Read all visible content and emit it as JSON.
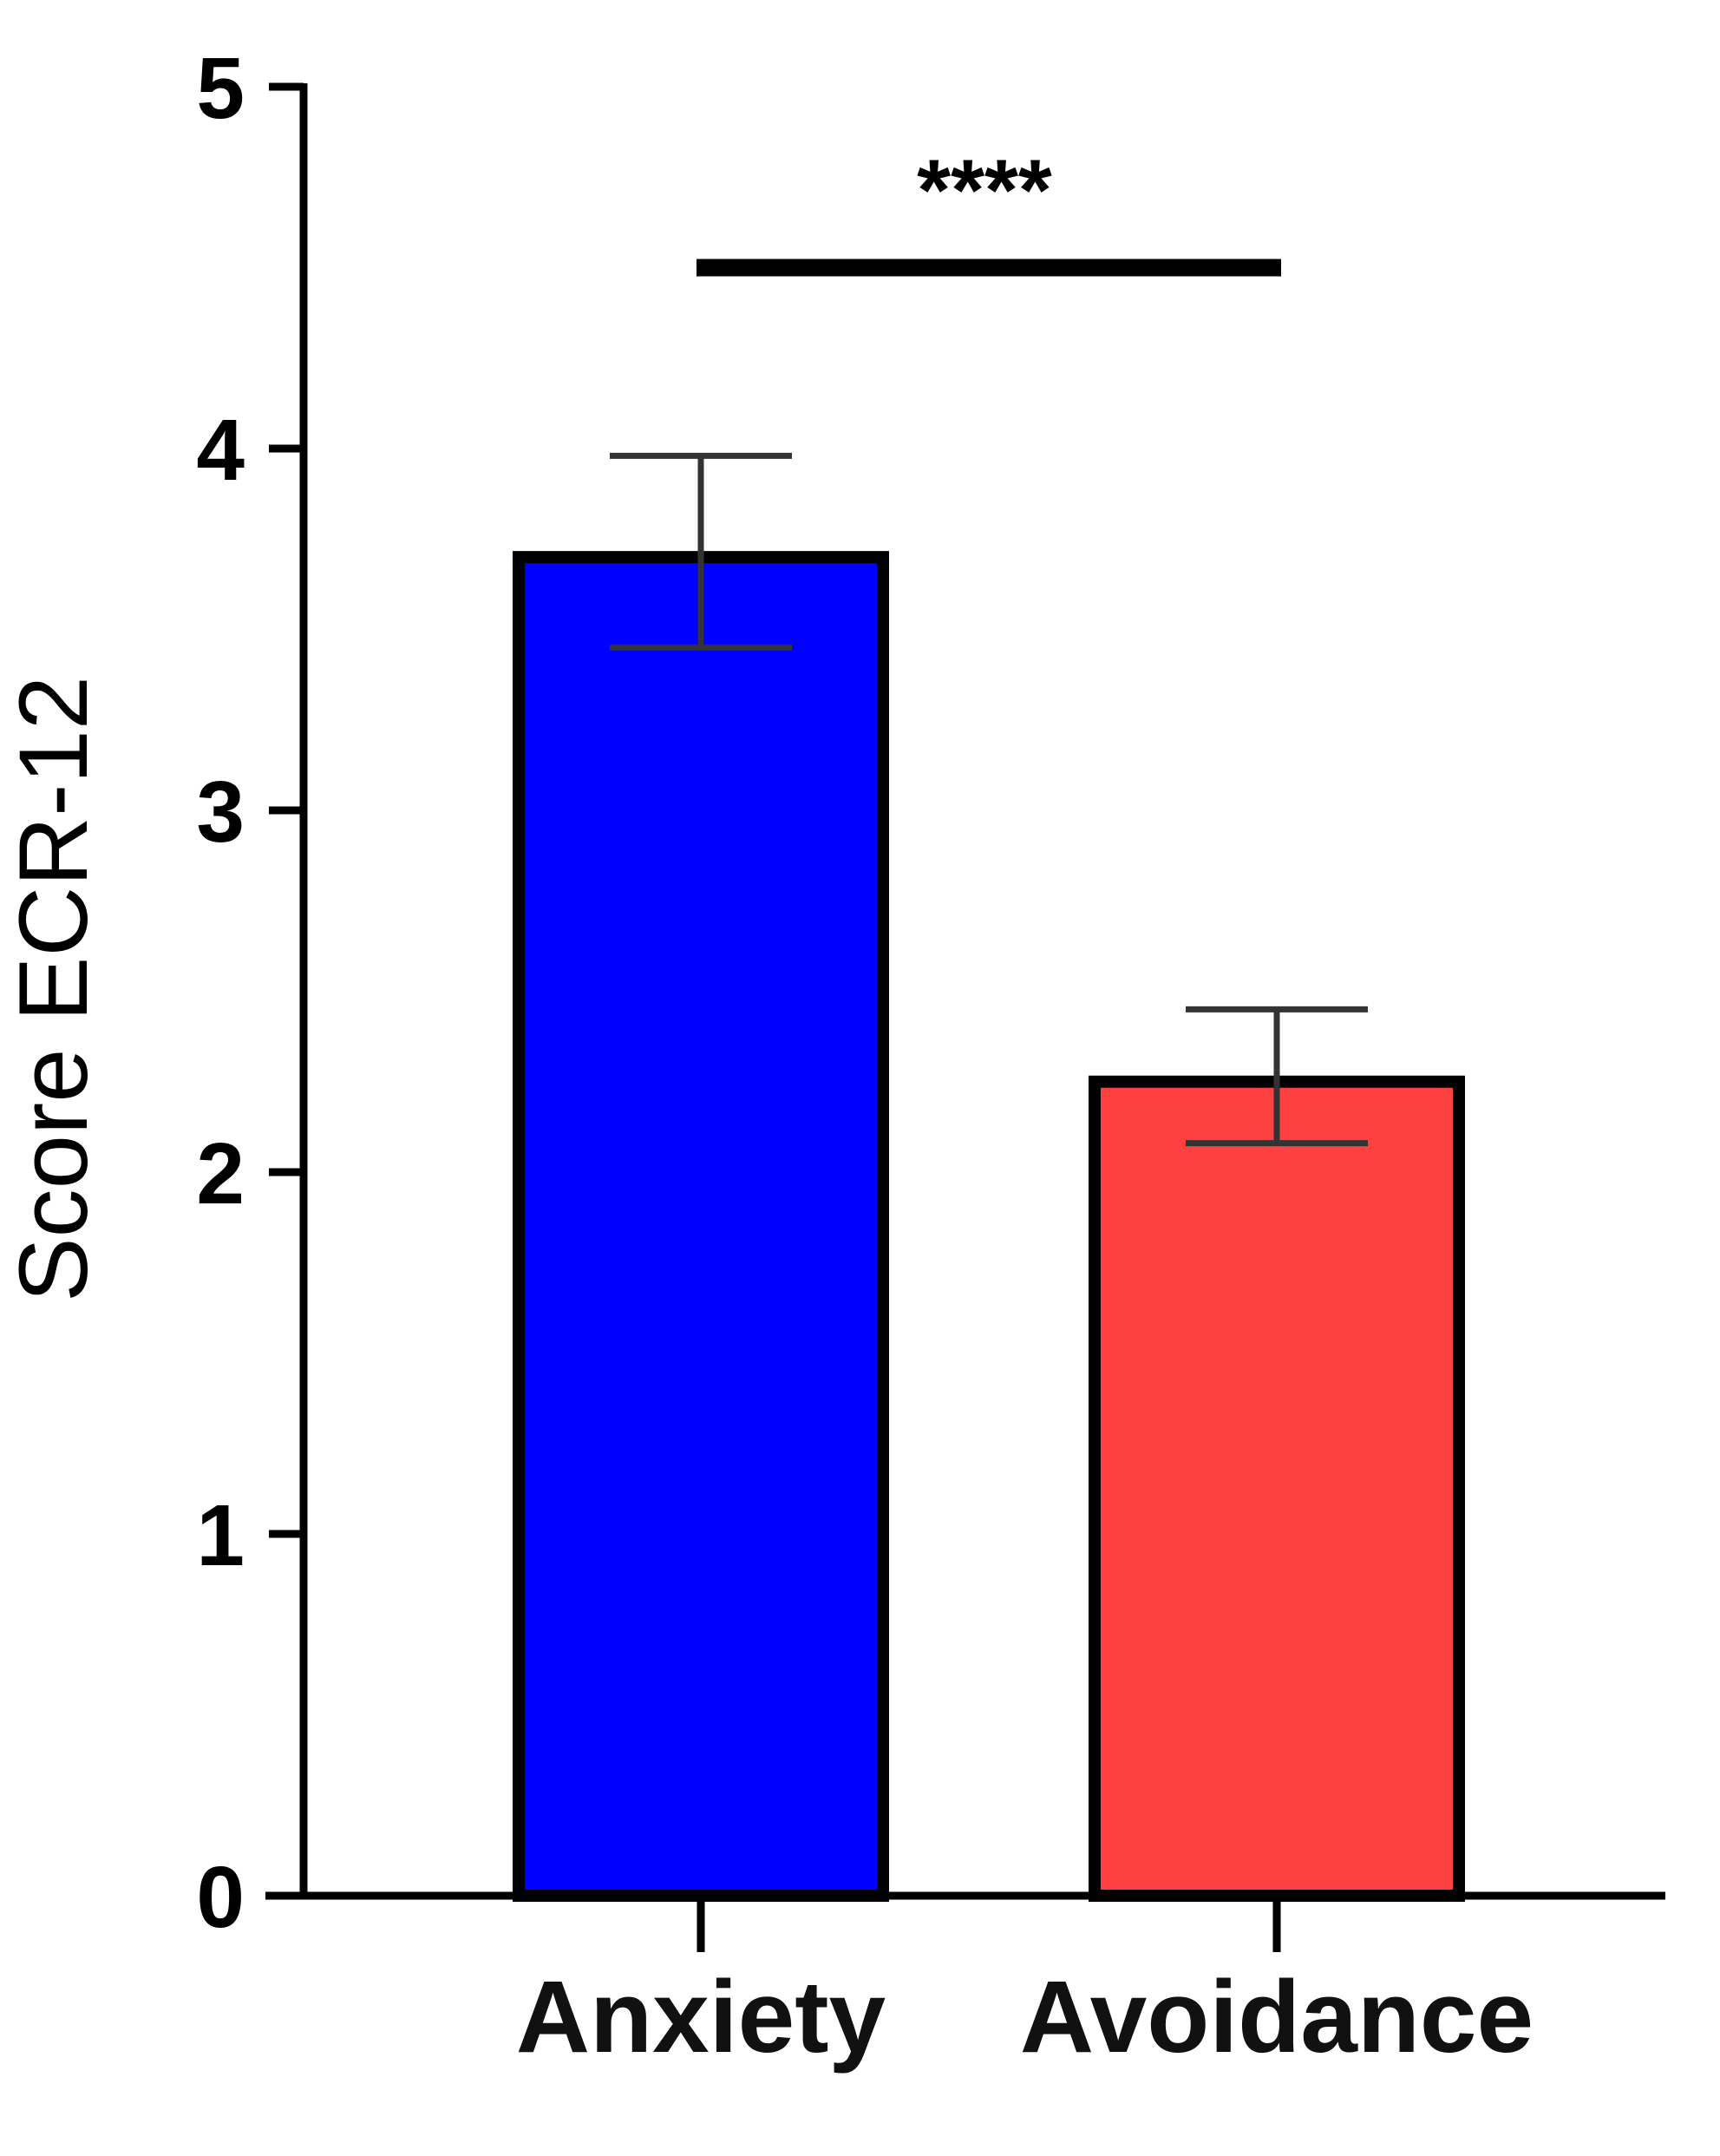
{
  "chart_data": {
    "type": "bar",
    "title": "",
    "xlabel": "",
    "ylabel": "Score ECR-12",
    "ylim": [
      0,
      5
    ],
    "yticks": [
      "0",
      "1",
      "2",
      "3",
      "4",
      "5"
    ],
    "categories": [
      "Anxiety",
      "Avoidance"
    ],
    "values": [
      3.7,
      2.25
    ],
    "error_upper": [
      3.98,
      2.45
    ],
    "error_lower": [
      3.45,
      2.08
    ],
    "colors": [
      "#0000ff",
      "#ff4040"
    ],
    "error_bar_color": "#333333",
    "grid": false,
    "legend": "none",
    "annotations": [
      {
        "text": "****",
        "from": "Anxiety",
        "to": "Avoidance",
        "y": 4.5
      }
    ]
  }
}
